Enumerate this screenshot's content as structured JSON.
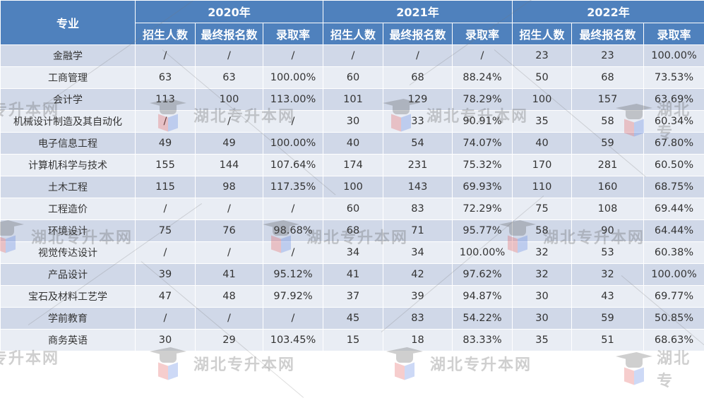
{
  "table": {
    "major_header": "专业",
    "years": [
      {
        "label": "2020年"
      },
      {
        "label": "2021年"
      },
      {
        "label": "2022年"
      }
    ],
    "sub_headers": [
      "招生人数",
      "最终报名数",
      "录取率"
    ],
    "rows": [
      {
        "major": "金融学",
        "y2020": [
          "/",
          "/",
          "/"
        ],
        "y2021": [
          "/",
          "/",
          "/"
        ],
        "y2022": [
          "23",
          "23",
          "100.00%"
        ]
      },
      {
        "major": "工商管理",
        "y2020": [
          "63",
          "63",
          "100.00%"
        ],
        "y2021": [
          "60",
          "68",
          "88.24%"
        ],
        "y2022": [
          "50",
          "68",
          "73.53%"
        ]
      },
      {
        "major": "会计学",
        "y2020": [
          "113",
          "100",
          "113.00%"
        ],
        "y2021": [
          "101",
          "129",
          "78.29%"
        ],
        "y2022": [
          "100",
          "157",
          "63.69%"
        ]
      },
      {
        "major": "机械设计制造及其自动化",
        "y2020": [
          "/",
          "/",
          "/"
        ],
        "y2021": [
          "30",
          "33",
          "90.91%"
        ],
        "y2022": [
          "35",
          "58",
          "60.34%"
        ]
      },
      {
        "major": "电子信息工程",
        "y2020": [
          "49",
          "49",
          "100.00%"
        ],
        "y2021": [
          "40",
          "54",
          "74.07%"
        ],
        "y2022": [
          "40",
          "59",
          "67.80%"
        ]
      },
      {
        "major": "计算机科学与技术",
        "y2020": [
          "155",
          "144",
          "107.64%"
        ],
        "y2021": [
          "174",
          "231",
          "75.32%"
        ],
        "y2022": [
          "170",
          "281",
          "60.50%"
        ]
      },
      {
        "major": "土木工程",
        "y2020": [
          "115",
          "98",
          "117.35%"
        ],
        "y2021": [
          "100",
          "143",
          "69.93%"
        ],
        "y2022": [
          "110",
          "160",
          "68.75%"
        ]
      },
      {
        "major": "工程造价",
        "y2020": [
          "/",
          "/",
          "/"
        ],
        "y2021": [
          "60",
          "83",
          "72.29%"
        ],
        "y2022": [
          "75",
          "108",
          "69.44%"
        ]
      },
      {
        "major": "环境设计",
        "y2020": [
          "75",
          "76",
          "98.68%"
        ],
        "y2021": [
          "68",
          "71",
          "95.77%"
        ],
        "y2022": [
          "58",
          "90",
          "64.44%"
        ]
      },
      {
        "major": "视觉传达设计",
        "y2020": [
          "/",
          "/",
          "/"
        ],
        "y2021": [
          "34",
          "34",
          "100.00%"
        ],
        "y2022": [
          "32",
          "53",
          "60.38%"
        ]
      },
      {
        "major": "产品设计",
        "y2020": [
          "39",
          "41",
          "95.12%"
        ],
        "y2021": [
          "41",
          "42",
          "97.62%"
        ],
        "y2022": [
          "32",
          "32",
          "100.00%"
        ]
      },
      {
        "major": "宝石及材料工艺学",
        "y2020": [
          "47",
          "48",
          "97.92%"
        ],
        "y2021": [
          "37",
          "39",
          "94.87%"
        ],
        "y2022": [
          "30",
          "43",
          "69.77%"
        ]
      },
      {
        "major": "学前教育",
        "y2020": [
          "/",
          "/",
          "/"
        ],
        "y2021": [
          "45",
          "83",
          "54.22%"
        ],
        "y2022": [
          "30",
          "59",
          "50.85%"
        ]
      },
      {
        "major": "商务英语",
        "y2020": [
          "30",
          "29",
          "103.45%"
        ],
        "y2021": [
          "15",
          "18",
          "83.33%"
        ],
        "y2022": [
          "35",
          "51",
          "68.63%"
        ]
      }
    ]
  },
  "watermark": {
    "text": "湖北专升本网",
    "partial_left": "专升本网",
    "partial_right": "湖北专"
  },
  "colors": {
    "header_bg": "#4f81bd",
    "row_odd": "#d0d8e8",
    "row_even": "#e9edf4",
    "text": "#333333"
  }
}
